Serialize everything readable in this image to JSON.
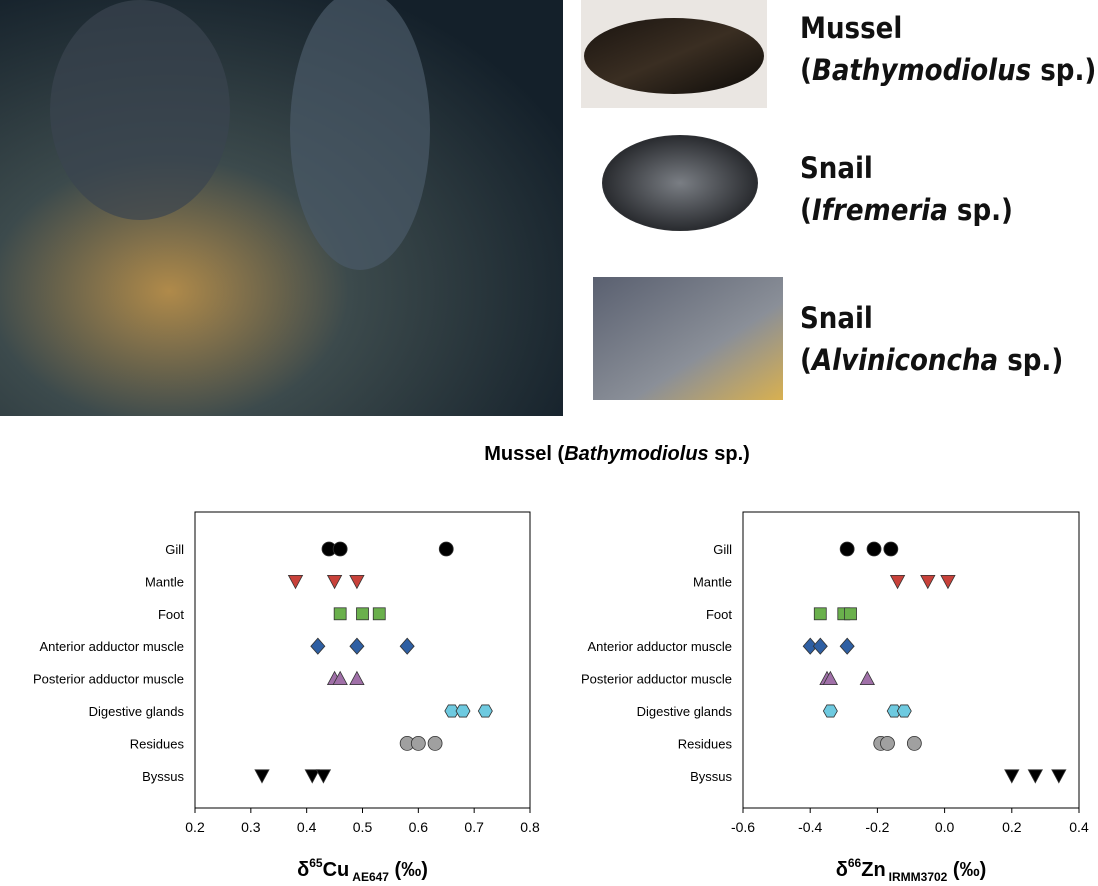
{
  "species": [
    {
      "common": "Mussel",
      "open": "(",
      "genus": "Bathymodiolus",
      "close": " sp.)"
    },
    {
      "common": "Snail",
      "open": "(",
      "genus": "Ifremeria",
      "close": " sp.)"
    },
    {
      "common": "Snail",
      "open": "(",
      "genus": "Alviniconcha",
      "close": " sp.)"
    }
  ],
  "heading": {
    "prefix": "Mussel (",
    "genus": "Bathymodiolus",
    "suffix": " sp.)"
  },
  "chart_data": [
    {
      "type": "scatter",
      "xlabel": {
        "symbol": "δ",
        "isotope": "65",
        "element": "Cu",
        "standard": "AE647",
        "unit": " (‰)"
      },
      "xlim": [
        0.2,
        0.8
      ],
      "xticks": [
        0.2,
        0.3,
        0.4,
        0.5,
        0.6,
        0.7,
        0.8
      ],
      "series": [
        {
          "name": "Gill",
          "color": "#000000",
          "marker": "circle",
          "values": [
            0.44,
            0.46,
            0.65
          ]
        },
        {
          "name": "Mantle",
          "color": "#c8413a",
          "marker": "triangle-down",
          "values": [
            0.38,
            0.45,
            0.49
          ]
        },
        {
          "name": "Foot",
          "color": "#6ab04c",
          "marker": "square",
          "values": [
            0.46,
            0.5,
            0.53
          ]
        },
        {
          "name": "Anterior adductor muscle",
          "color": "#2e5fa3",
          "marker": "diamond",
          "values": [
            0.42,
            0.49,
            0.58
          ]
        },
        {
          "name": "Posterior adductor muscle",
          "color": "#a070a8",
          "marker": "triangle-up",
          "values": [
            0.45,
            0.46,
            0.49
          ]
        },
        {
          "name": "Digestive glands",
          "color": "#6ecae0",
          "marker": "hexagon",
          "values": [
            0.66,
            0.68,
            0.72
          ]
        },
        {
          "name": "Residues",
          "color": "#a0a0a0",
          "marker": "circle",
          "values": [
            0.58,
            0.6,
            0.63
          ]
        },
        {
          "name": "Byssus",
          "color": "#000000",
          "marker": "triangle-down",
          "values": [
            0.32,
            0.41,
            0.43
          ]
        }
      ]
    },
    {
      "type": "scatter",
      "xlabel": {
        "symbol": "δ",
        "isotope": "66",
        "element": "Zn",
        "standard": "IRMM3702",
        "unit": " (‰)"
      },
      "xlim": [
        -0.6,
        0.4
      ],
      "xticks": [
        -0.6,
        -0.4,
        -0.2,
        {
          "value": 0,
          "label": "0.0"
        },
        0.2,
        0.4
      ],
      "series": [
        {
          "name": "Gill",
          "color": "#000000",
          "marker": "circle",
          "values": [
            -0.29,
            -0.21,
            -0.16
          ]
        },
        {
          "name": "Mantle",
          "color": "#c8413a",
          "marker": "triangle-down",
          "values": [
            -0.14,
            -0.05,
            0.01
          ]
        },
        {
          "name": "Foot",
          "color": "#6ab04c",
          "marker": "square",
          "values": [
            -0.37,
            -0.3,
            -0.28
          ]
        },
        {
          "name": "Anterior adductor muscle",
          "color": "#2e5fa3",
          "marker": "diamond",
          "values": [
            -0.4,
            -0.37,
            -0.29
          ]
        },
        {
          "name": "Posterior adductor muscle",
          "color": "#a070a8",
          "marker": "triangle-up",
          "values": [
            -0.35,
            -0.34,
            -0.23
          ]
        },
        {
          "name": "Digestive glands",
          "color": "#6ecae0",
          "marker": "hexagon",
          "values": [
            -0.34,
            -0.15,
            -0.12
          ]
        },
        {
          "name": "Residues",
          "color": "#a0a0a0",
          "marker": "circle",
          "values": [
            -0.19,
            -0.17,
            -0.09
          ]
        },
        {
          "name": "Byssus",
          "color": "#000000",
          "marker": "triangle-down",
          "values": [
            0.2,
            0.27,
            0.34
          ]
        }
      ]
    }
  ]
}
